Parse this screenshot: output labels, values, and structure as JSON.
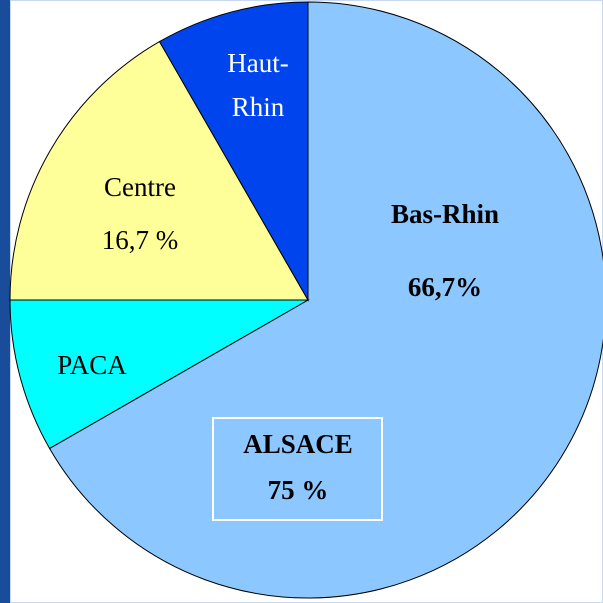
{
  "chart_data": {
    "type": "pie",
    "categories": [
      "Bas-Rhin",
      "PACA",
      "Centre",
      "Haut-Rhin"
    ],
    "values": [
      66.7,
      8.3,
      16.7,
      8.3
    ],
    "value_labels": [
      "66,7%",
      null,
      "16,7 %",
      null
    ],
    "colors": [
      "#8cc8ff",
      "#00ffff",
      "#ffff99",
      "#0044ee"
    ],
    "annotation": [
      "ALSACE",
      "75 %"
    ]
  }
}
